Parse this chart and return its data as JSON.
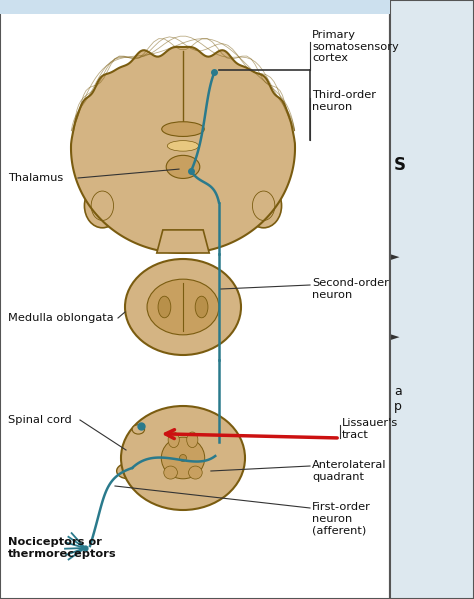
{
  "bg_color": "#e8eef2",
  "panel_color": "#ffffff",
  "brain_fill": "#d4b483",
  "brain_inner": "#c8a060",
  "brain_dark": "#b8904a",
  "brain_outline": "#7a5c10",
  "pathway_color": "#2a7a8c",
  "arrow_red": "#cc1111",
  "text_color": "#111111",
  "bold_label_color": "#111111",
  "right_panel_color": "#dde8ef",
  "figsize": [
    4.74,
    5.99
  ],
  "dpi": 100,
  "labels": {
    "primary_somatosensory": "Primary\nsomatosensory\ncortex",
    "third_order": "Third-order\nneuron",
    "thalamus": "Thalamus",
    "second_order": "Second-order\nneuron",
    "medulla": "Medulla oblongata",
    "spinal_cord": "Spinal cord",
    "lissauers": "Lissauer's\ntract",
    "anterolateral": "Anterolateral\nquadrant",
    "first_order": "First-order\nneuron\n(afferent)",
    "nociceptors": "Nociceptors or\nthermoreceptors"
  }
}
